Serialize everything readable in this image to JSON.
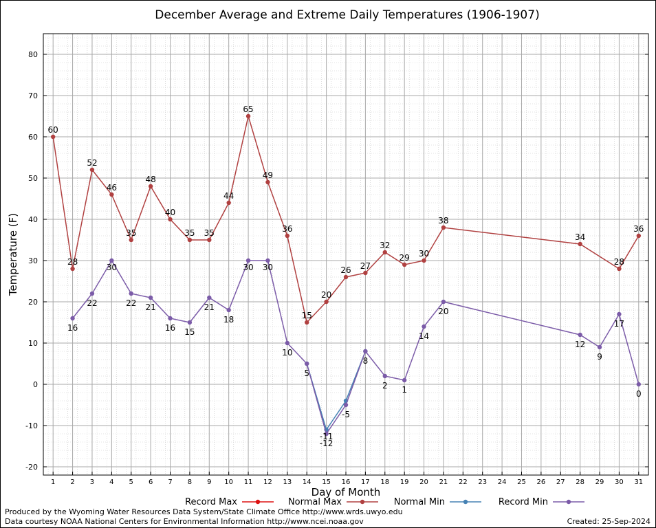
{
  "chart_data": {
    "type": "line",
    "title": "December Average and Extreme Daily Temperatures (1906-1907)",
    "xlabel": "Day of Month",
    "ylabel": "Temperature (F)",
    "xlim": [
      0.5,
      31.5
    ],
    "ylim": [
      -22,
      85
    ],
    "x_ticks": [
      1,
      2,
      3,
      4,
      5,
      6,
      7,
      8,
      9,
      10,
      11,
      12,
      13,
      14,
      15,
      16,
      17,
      18,
      19,
      20,
      21,
      22,
      23,
      24,
      25,
      26,
      27,
      28,
      29,
      30,
      31
    ],
    "y_ticks": [
      -20,
      -10,
      0,
      10,
      20,
      30,
      40,
      50,
      60,
      70,
      80
    ],
    "grid": true,
    "legend_position": "bottom",
    "legend": [
      {
        "name": "Record Max",
        "color": "#dd1111"
      },
      {
        "name": "Normal Max",
        "color": "#b04040"
      },
      {
        "name": "Normal Min",
        "color": "#4682b4"
      },
      {
        "name": "Record Min",
        "color": "#7b5ba8"
      }
    ],
    "series": [
      {
        "name": "Normal Max",
        "color": "#b04040",
        "x": [
          1,
          2,
          3,
          4,
          5,
          6,
          7,
          8,
          9,
          10,
          11,
          12,
          13,
          14,
          15,
          16,
          17,
          18,
          19,
          20,
          21,
          28,
          30,
          31
        ],
        "values": [
          60,
          28,
          52,
          46,
          35,
          48,
          40,
          35,
          35,
          44,
          65,
          49,
          36,
          15,
          20,
          26,
          27,
          32,
          29,
          30,
          38,
          34,
          28,
          36
        ],
        "labels": [
          "60",
          "28",
          "52",
          "46",
          "35",
          "48",
          "40",
          "35",
          "35",
          "44",
          "65",
          "49",
          "36",
          "15",
          "20",
          "26",
          "27",
          "32",
          "29",
          "30",
          "38",
          "34",
          "28",
          "36"
        ]
      },
      {
        "name": "Normal Min",
        "color": "#4682b4",
        "x": [
          14,
          15,
          16,
          17
        ],
        "values": [
          5,
          -11,
          -4,
          8
        ],
        "labels": [
          "",
          "-11",
          "",
          ""
        ]
      },
      {
        "name": "Record Min",
        "color": "#7b5ba8",
        "x": [
          2,
          3,
          4,
          5,
          6,
          7,
          8,
          9,
          10,
          11,
          12,
          13,
          14,
          15,
          16,
          17,
          18,
          19,
          20,
          21,
          28,
          29,
          30,
          31
        ],
        "values": [
          16,
          22,
          30,
          22,
          21,
          16,
          15,
          21,
          18,
          30,
          30,
          10,
          5,
          -12,
          -5,
          8,
          2,
          1,
          14,
          20,
          12,
          9,
          17,
          0
        ],
        "labels": [
          "16",
          "22",
          "30",
          "22",
          "21",
          "16",
          "15",
          "21",
          "18",
          "30",
          "30",
          "10",
          "5",
          "-12",
          "-5",
          "8",
          "2",
          "1",
          "14",
          "20",
          "12",
          "9",
          "17",
          "0"
        ]
      }
    ]
  },
  "footer": {
    "produced_by": "Produced by the Wyoming Water Resources Data System/State Climate Office http://www.wrds.uwyo.edu",
    "data_courtesy": "Data courtesy NOAA National Centers for Environmental Information http://www.ncei.noaa.gov",
    "created": "Created:  25-Sep-2024"
  }
}
